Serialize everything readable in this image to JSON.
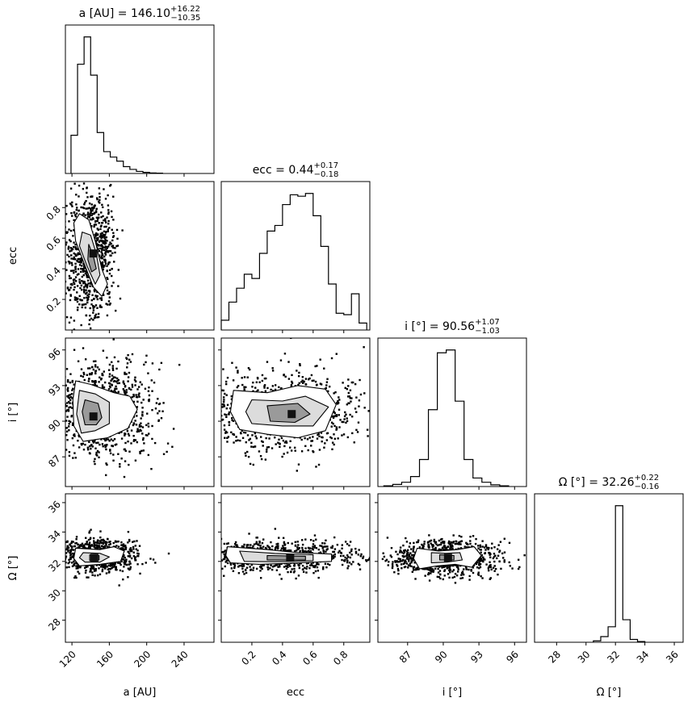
{
  "chart_data": {
    "type": "corner",
    "parameters": [
      {
        "key": "a",
        "label": "a [AU]",
        "title": {
          "main": "a [AU] = 146.10",
          "sup": "+16.22",
          "sub": "−10.35"
        },
        "ticks": [
          120,
          160,
          200,
          240
        ],
        "range": [
          113,
          272
        ]
      },
      {
        "key": "ecc",
        "label": "ecc",
        "title": {
          "main": "ecc = 0.44",
          "sup": "+0.17",
          "sub": "−0.18"
        },
        "ticks": [
          0.2,
          0.4,
          0.6,
          0.8
        ],
        "range": [
          0.0,
          0.97
        ]
      },
      {
        "key": "i",
        "label": "i [°]",
        "title": {
          "main": "i [°] = 90.56",
          "sup": "+1.07",
          "sub": "−1.03"
        },
        "ticks": [
          87,
          90,
          93,
          96
        ],
        "range": [
          84.5,
          97.0
        ]
      },
      {
        "key": "omega",
        "label": "Ω [°]",
        "title": {
          "main": "Ω [°] = 32.26",
          "sup": "+0.22",
          "sub": "−0.16"
        },
        "ticks": [
          28,
          30,
          32,
          34,
          36
        ],
        "range": [
          26.5,
          36.6
        ]
      }
    ],
    "tick_labels": {
      "a": [
        "120",
        "160",
        "200",
        "240"
      ],
      "ecc": [
        "0.2",
        "0.4",
        "0.6",
        "0.8"
      ],
      "i": [
        "87",
        "90",
        "93",
        "96"
      ],
      "omega": [
        "28",
        "30",
        "32",
        "34",
        "36"
      ]
    },
    "histograms": [
      {
        "param": "a",
        "bin_edges": [
          119,
          126,
          133,
          140,
          147,
          154,
          161,
          168,
          175,
          182,
          189,
          196,
          203,
          210,
          217
        ],
        "counts": [
          0.28,
          0.8,
          1.0,
          0.72,
          0.3,
          0.16,
          0.12,
          0.09,
          0.05,
          0.03,
          0.015,
          0.008,
          0.004,
          0.002
        ]
      },
      {
        "param": "ecc",
        "bin_edges": [
          0.0,
          0.05,
          0.1,
          0.15,
          0.2,
          0.25,
          0.3,
          0.35,
          0.4,
          0.45,
          0.5,
          0.55,
          0.6,
          0.65,
          0.7,
          0.75,
          0.8,
          0.85,
          0.9,
          0.95
        ],
        "counts": [
          0.07,
          0.2,
          0.3,
          0.4,
          0.37,
          0.55,
          0.71,
          0.75,
          0.9,
          0.97,
          0.96,
          0.98,
          0.82,
          0.6,
          0.33,
          0.12,
          0.11,
          0.26,
          0.05
        ]
      },
      {
        "param": "i",
        "bin_edges": [
          85.0,
          85.75,
          86.5,
          87.25,
          88.0,
          88.75,
          89.5,
          90.25,
          91.0,
          91.75,
          92.5,
          93.25,
          94.0,
          94.75,
          95.5
        ],
        "counts": [
          0.005,
          0.015,
          0.03,
          0.07,
          0.19,
          0.54,
          0.94,
          0.96,
          0.6,
          0.19,
          0.06,
          0.03,
          0.012,
          0.005
        ]
      },
      {
        "param": "omega",
        "bin_edges": [
          30.5,
          31.0,
          31.5,
          32.0,
          32.5,
          33.0,
          33.5,
          34.0
        ],
        "counts": [
          0.01,
          0.04,
          0.11,
          0.97,
          0.16,
          0.02,
          0.005
        ]
      }
    ],
    "contours": [
      {
        "x": "a",
        "y": "ecc",
        "peak": [
          143,
          0.5
        ],
        "levels": [
          [
            [
              128,
              0.76
            ],
            [
              138,
              0.72
            ],
            [
              145,
              0.58
            ],
            [
              152,
              0.4
            ],
            [
              158,
              0.3
            ],
            [
              152,
              0.22
            ],
            [
              143,
              0.28
            ],
            [
              134,
              0.42
            ],
            [
              124,
              0.58
            ],
            [
              122,
              0.7
            ]
          ],
          [
            [
              131,
              0.64
            ],
            [
              140,
              0.62
            ],
            [
              146,
              0.5
            ],
            [
              150,
              0.36
            ],
            [
              145,
              0.3
            ],
            [
              136,
              0.42
            ],
            [
              128,
              0.55
            ]
          ],
          [
            [
              138,
              0.56
            ],
            [
              143,
              0.48
            ],
            [
              146,
              0.4
            ],
            [
              141,
              0.38
            ],
            [
              137,
              0.46
            ]
          ]
        ]
      },
      {
        "x": "a",
        "y": "i",
        "peak": [
          143,
          90.4
        ],
        "levels": [
          [
            [
              124,
              93.4
            ],
            [
              140,
              93.1
            ],
            [
              165,
              92.4
            ],
            [
              182,
              92.1
            ],
            [
              190,
              91.0
            ],
            [
              180,
              89.4
            ],
            [
              158,
              88.6
            ],
            [
              132,
              88.3
            ],
            [
              122,
              89.6
            ],
            [
              121,
              91.8
            ]
          ],
          [
            [
              128,
              92.6
            ],
            [
              145,
              92.3
            ],
            [
              160,
              91.6
            ],
            [
              160,
              89.8
            ],
            [
              145,
              89.2
            ],
            [
              130,
              89.0
            ],
            [
              125,
              90.6
            ]
          ],
          [
            [
              134,
              91.8
            ],
            [
              148,
              91.5
            ],
            [
              152,
              90.3
            ],
            [
              146,
              89.7
            ],
            [
              134,
              89.7
            ],
            [
              131,
              90.8
            ]
          ]
        ]
      },
      {
        "x": "a",
        "y": "omega",
        "peak": [
          144,
          32.25
        ],
        "levels": [
          [
            [
              124,
              32.9
            ],
            [
              150,
              32.8
            ],
            [
              165,
              33.0
            ],
            [
              176,
              32.7
            ],
            [
              172,
              32.0
            ],
            [
              150,
              31.8
            ],
            [
              128,
              31.7
            ],
            [
              122,
              32.2
            ]
          ],
          [
            [
              132,
              32.6
            ],
            [
              150,
              32.55
            ],
            [
              160,
              32.3
            ],
            [
              150,
              31.95
            ],
            [
              134,
              31.95
            ],
            [
              128,
              32.25
            ]
          ],
          [
            [
              139,
              32.45
            ],
            [
              149,
              32.4
            ],
            [
              149,
              32.1
            ],
            [
              139,
              32.05
            ]
          ]
        ]
      },
      {
        "x": "ecc",
        "y": "i",
        "peak": [
          0.46,
          90.6
        ],
        "levels": [
          [
            [
              0.08,
              92.6
            ],
            [
              0.3,
              92.4
            ],
            [
              0.5,
              93.0
            ],
            [
              0.68,
              92.7
            ],
            [
              0.75,
              91.4
            ],
            [
              0.68,
              89.2
            ],
            [
              0.5,
              88.6
            ],
            [
              0.3,
              88.9
            ],
            [
              0.12,
              89.3
            ],
            [
              0.06,
              90.8
            ]
          ],
          [
            [
              0.2,
              91.8
            ],
            [
              0.4,
              91.7
            ],
            [
              0.55,
              92.1
            ],
            [
              0.7,
              91.2
            ],
            [
              0.6,
              89.6
            ],
            [
              0.4,
              89.6
            ],
            [
              0.2,
              89.8
            ],
            [
              0.16,
              90.8
            ]
          ],
          [
            [
              0.3,
              91.3
            ],
            [
              0.5,
              91.5
            ],
            [
              0.58,
              90.6
            ],
            [
              0.48,
              89.9
            ],
            [
              0.32,
              90.0
            ]
          ]
        ]
      },
      {
        "x": "ecc",
        "y": "omega",
        "peak": [
          0.45,
          32.25
        ],
        "levels": [
          [
            [
              0.04,
              33.0
            ],
            [
              0.3,
              32.8
            ],
            [
              0.5,
              32.6
            ],
            [
              0.72,
              32.5
            ],
            [
              0.72,
              32.0
            ],
            [
              0.5,
              31.9
            ],
            [
              0.25,
              31.8
            ],
            [
              0.06,
              31.9
            ],
            [
              0.03,
              32.4
            ]
          ],
          [
            [
              0.12,
              32.7
            ],
            [
              0.35,
              32.55
            ],
            [
              0.6,
              32.45
            ],
            [
              0.6,
              32.05
            ],
            [
              0.35,
              31.98
            ],
            [
              0.15,
              32.0
            ]
          ],
          [
            [
              0.3,
              32.4
            ],
            [
              0.55,
              32.35
            ],
            [
              0.55,
              32.1
            ],
            [
              0.3,
              32.1
            ]
          ]
        ]
      },
      {
        "x": "i",
        "y": "omega",
        "peak": [
          90.4,
          32.25
        ],
        "levels": [
          [
            [
              87.8,
              32.9
            ],
            [
              89.6,
              32.7
            ],
            [
              91.2,
              32.8
            ],
            [
              92.6,
              33.0
            ],
            [
              93.2,
              32.4
            ],
            [
              92.4,
              31.6
            ],
            [
              91.0,
              31.8
            ],
            [
              89.5,
              31.7
            ],
            [
              88.0,
              31.5
            ],
            [
              87.5,
              32.2
            ]
          ],
          [
            [
              89.0,
              32.6
            ],
            [
              90.2,
              32.55
            ],
            [
              91.4,
              32.6
            ],
            [
              91.6,
              32.1
            ],
            [
              90.3,
              31.95
            ],
            [
              89.0,
              31.9
            ]
          ],
          [
            [
              89.7,
              32.45
            ],
            [
              90.9,
              32.4
            ],
            [
              90.9,
              32.1
            ],
            [
              89.7,
              32.1
            ]
          ]
        ]
      }
    ],
    "colors": {
      "line": "#000000",
      "density": "#000000",
      "background": "#ffffff"
    }
  }
}
